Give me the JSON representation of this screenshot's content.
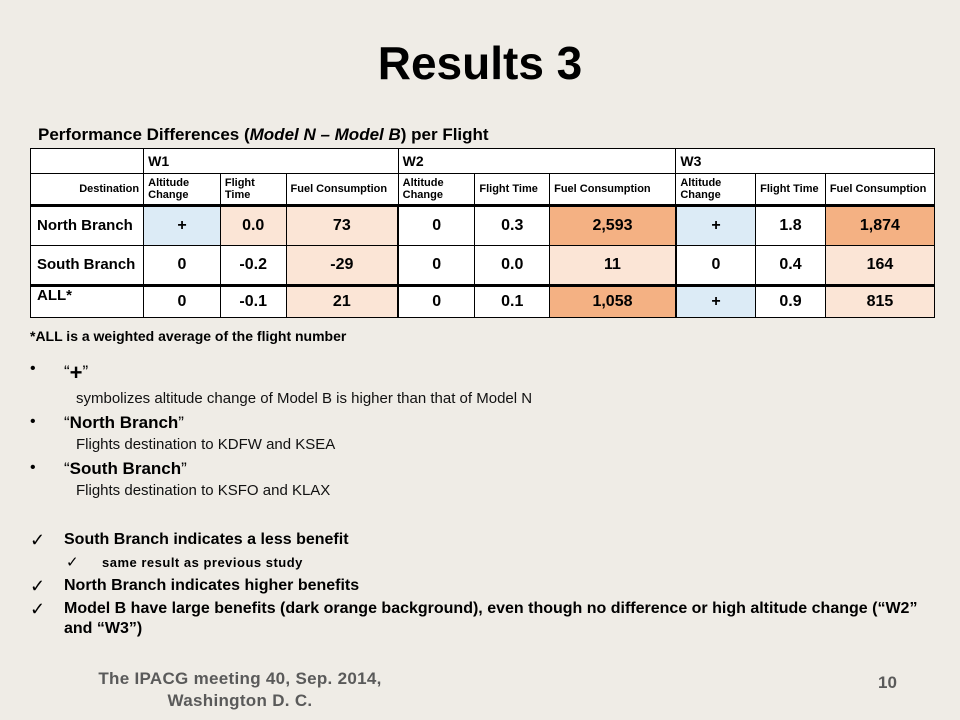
{
  "title": "Results 3",
  "subtitle": {
    "prefix": "Performance Differences (",
    "emph": "Model N – Model B",
    "suffix": ") per Flight"
  },
  "table": {
    "groups": [
      "W1",
      "W2",
      "W3"
    ],
    "destination_header": "Destination",
    "subheaders": [
      "Altitude Change",
      "Flight Time",
      "Fuel Consumption"
    ],
    "rows": [
      {
        "dest": "North Branch",
        "cells": [
          "+",
          "0.0",
          "73",
          "0",
          "0.3",
          "2,593",
          "+",
          "1.8",
          "1,874"
        ],
        "colors": [
          "#dcebf6",
          "#fbe5d6",
          "#fbe5d6",
          "#ffffff",
          "#ffffff",
          "#f4b183",
          "#dcebf6",
          "#ffffff",
          "#f4b183"
        ]
      },
      {
        "dest": "South Branch",
        "cells": [
          "0",
          "-0.2",
          "-29",
          "0",
          "0.0",
          "11",
          "0",
          "0.4",
          "164"
        ],
        "colors": [
          "#ffffff",
          "#ffffff",
          "#fbe5d6",
          "#ffffff",
          "#ffffff",
          "#fbe5d6",
          "#ffffff",
          "#ffffff",
          "#fbe5d6"
        ]
      },
      {
        "dest": "ALL*",
        "cells": [
          "0",
          "-0.1",
          "21",
          "0",
          "0.1",
          "1,058",
          "+",
          "0.9",
          "815"
        ],
        "colors": [
          "#ffffff",
          "#ffffff",
          "#fbe5d6",
          "#ffffff",
          "#ffffff",
          "#f4b183",
          "#dcebf6",
          "#ffffff",
          "#fbe5d6"
        ]
      }
    ]
  },
  "footnote": "*ALL is a weighted average of the flight number",
  "bullets": [
    {
      "open": "“",
      "head": "+",
      "close": "”",
      "sub": "symbolizes altitude change of Model B is higher than that of Model N"
    },
    {
      "open": "“",
      "head": "North Branch",
      "close": "”",
      "sub": "Flights destination to KDFW and KSEA"
    },
    {
      "open": "“",
      "head": "South Branch",
      "close": "”",
      "sub": "Flights destination to KSFO and KLAX"
    }
  ],
  "conclusions": [
    "South Branch indicates a less benefit",
    "same result as previous study",
    "North Branch indicates higher benefits",
    "Model B have large benefits (dark orange background), even though no difference or high altitude change (“W2” and “W3”)"
  ],
  "footer": {
    "line1": "The IPACG meeting 40, Sep. 2014,",
    "line2": "Washington D. C.",
    "page": "10"
  },
  "colors": {
    "background": "#efece6",
    "light_blue": "#dcebf6",
    "light_orange": "#fbe5d6",
    "dark_orange": "#f4b183"
  }
}
